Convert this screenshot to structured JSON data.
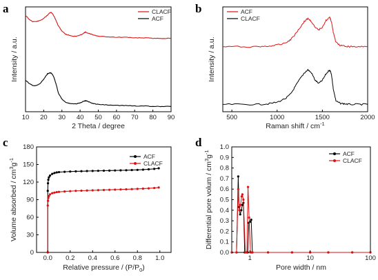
{
  "colors": {
    "acf": "#000000",
    "clacf": "#dd1111",
    "axis": "#000000"
  },
  "chart_data": [
    {
      "panel": "a",
      "type": "line",
      "title": "",
      "xlabel": "2 Theta / degree",
      "ylabel": "Intensity / a.u.",
      "xlim": [
        10,
        90
      ],
      "xticks": [
        "10",
        "20",
        "30",
        "40",
        "50",
        "60",
        "70",
        "80",
        "90"
      ],
      "legend": {
        "position": "top-right",
        "entries": [
          "CLACF",
          "ACF"
        ]
      },
      "series": [
        {
          "name": "CLACF",
          "color": "#dd1111",
          "x": [
            10,
            12,
            14,
            16,
            18,
            20,
            22,
            23,
            24,
            25,
            26,
            27,
            28,
            30,
            32,
            34,
            36,
            38,
            40,
            42,
            43,
            44,
            46,
            48,
            50,
            55,
            60,
            65,
            70,
            75,
            80,
            85,
            90
          ],
          "y": [
            0.92,
            0.88,
            0.86,
            0.86,
            0.87,
            0.89,
            0.92,
            0.94,
            0.95,
            0.93,
            0.9,
            0.86,
            0.82,
            0.77,
            0.74,
            0.73,
            0.72,
            0.72,
            0.73,
            0.75,
            0.76,
            0.75,
            0.74,
            0.73,
            0.72,
            0.715,
            0.71,
            0.71,
            0.705,
            0.705,
            0.7,
            0.7,
            0.7
          ]
        },
        {
          "name": "ACF",
          "color": "#000000",
          "x": [
            10,
            12,
            14,
            16,
            18,
            20,
            22,
            23,
            24,
            25,
            26,
            27,
            28,
            30,
            32,
            34,
            36,
            38,
            40,
            42,
            43,
            44,
            46,
            48,
            50,
            55,
            60,
            65,
            70,
            75,
            80,
            85,
            90
          ],
          "y": [
            0.3,
            0.27,
            0.25,
            0.25,
            0.27,
            0.31,
            0.36,
            0.37,
            0.37,
            0.35,
            0.31,
            0.25,
            0.18,
            0.12,
            0.09,
            0.08,
            0.075,
            0.075,
            0.085,
            0.1,
            0.105,
            0.1,
            0.085,
            0.075,
            0.07,
            0.065,
            0.06,
            0.06,
            0.055,
            0.055,
            0.05,
            0.05,
            0.05
          ]
        }
      ]
    },
    {
      "panel": "b",
      "type": "line",
      "title": "",
      "xlabel": "Raman shift / cm",
      "xlabel_sup": "-1",
      "ylabel": "Intensity / a.u.",
      "xlim": [
        400,
        2000
      ],
      "xticks": [
        "500",
        "1000",
        "1500",
        "2000"
      ],
      "legend": {
        "position": "top-left",
        "entries": [
          "ACF",
          "CLACF"
        ]
      },
      "series": [
        {
          "name": "ACF",
          "color": "#dd1111",
          "x": [
            400,
            600,
            800,
            900,
            1000,
            1100,
            1150,
            1200,
            1250,
            1300,
            1340,
            1380,
            1420,
            1460,
            1500,
            1540,
            1580,
            1600,
            1620,
            1650,
            1700,
            1750,
            1800,
            1900,
            2000
          ],
          "y": [
            0.62,
            0.62,
            0.62,
            0.625,
            0.635,
            0.66,
            0.69,
            0.74,
            0.8,
            0.86,
            0.89,
            0.86,
            0.8,
            0.78,
            0.81,
            0.87,
            0.9,
            0.86,
            0.76,
            0.66,
            0.63,
            0.625,
            0.62,
            0.62,
            0.62
          ]
        },
        {
          "name": "CLACF",
          "color": "#000000",
          "x": [
            400,
            600,
            800,
            900,
            1000,
            1100,
            1150,
            1200,
            1250,
            1300,
            1340,
            1380,
            1420,
            1460,
            1500,
            1540,
            1580,
            1600,
            1620,
            1650,
            1700,
            1750,
            1800,
            1900,
            2000
          ],
          "y": [
            0.07,
            0.07,
            0.07,
            0.075,
            0.09,
            0.13,
            0.17,
            0.24,
            0.31,
            0.37,
            0.4,
            0.37,
            0.3,
            0.27,
            0.3,
            0.36,
            0.4,
            0.36,
            0.22,
            0.1,
            0.08,
            0.075,
            0.07,
            0.07,
            0.07
          ]
        }
      ]
    },
    {
      "panel": "c",
      "type": "line",
      "title": "",
      "xlabel": "Relative pressure / (P/P",
      "xlabel_sub": "0",
      "xlabel_tail": ")",
      "ylabel": "Volume absorbed / cm",
      "ylabel_sup": "3",
      "ylabel_mid": "g",
      "ylabel_sup2": "-1",
      "xlim": [
        -0.1,
        1.1
      ],
      "ylim": [
        0,
        180
      ],
      "xticks": [
        "0.0",
        "0.2",
        "0.4",
        "0.6",
        "0.8",
        "1.0"
      ],
      "yticks": [
        "0",
        "30",
        "60",
        "90",
        "120",
        "150",
        "180"
      ],
      "legend": {
        "position": "top-right",
        "entries": [
          "ACF",
          "CLACF"
        ]
      },
      "series": [
        {
          "name": "ACF",
          "color": "#000000",
          "x": [
            0.0,
            0.0,
            0.002,
            0.005,
            0.01,
            0.02,
            0.04,
            0.06,
            0.08,
            0.1,
            0.15,
            0.2,
            0.25,
            0.3,
            0.35,
            0.4,
            0.45,
            0.5,
            0.55,
            0.6,
            0.65,
            0.7,
            0.75,
            0.8,
            0.85,
            0.9,
            0.95,
            0.99
          ],
          "y": [
            0,
            105,
            118,
            124,
            128,
            131,
            134,
            135.5,
            136.5,
            137,
            137.5,
            138,
            138.3,
            138.5,
            138.8,
            139,
            139.2,
            139.4,
            139.6,
            139.8,
            140,
            140.2,
            140.5,
            140.8,
            141.2,
            141.8,
            142.5,
            143.5
          ]
        },
        {
          "name": "CLACF",
          "color": "#dd1111",
          "x": [
            0.0,
            0.0,
            0.002,
            0.005,
            0.01,
            0.02,
            0.04,
            0.06,
            0.08,
            0.1,
            0.15,
            0.2,
            0.25,
            0.3,
            0.35,
            0.4,
            0.45,
            0.5,
            0.55,
            0.6,
            0.65,
            0.7,
            0.75,
            0.8,
            0.85,
            0.9,
            0.95,
            0.99
          ],
          "y": [
            0,
            80,
            88,
            93,
            96,
            99,
            101,
            102,
            102.8,
            103.3,
            104,
            104.5,
            105,
            105.3,
            105.6,
            105.9,
            106.2,
            106.5,
            106.8,
            107.1,
            107.4,
            107.7,
            108,
            108.4,
            108.8,
            109.3,
            109.9,
            110.8
          ]
        }
      ]
    },
    {
      "panel": "d",
      "type": "line",
      "title": "",
      "xlabel": "Pore width / nm",
      "ylabel": "Differential pore volum / cm",
      "ylabel_sup": "3",
      "ylabel_mid": "g",
      "ylabel_sup2": "-1",
      "xscale": "log",
      "xlim": [
        0.5,
        100
      ],
      "ylim": [
        0.0,
        1.0
      ],
      "xticks": [
        "1",
        "10",
        "100"
      ],
      "yticks": [
        "0.0",
        "0.1",
        "0.2",
        "0.3",
        "0.4",
        "0.5",
        "0.6",
        "0.7",
        "0.8",
        "0.9",
        "1.0"
      ],
      "legend": {
        "position": "top-right",
        "entries": [
          "ACF",
          "CLACF"
        ]
      },
      "series": [
        {
          "name": "ACF",
          "color": "#000000",
          "x": [
            0.5,
            0.6,
            0.64,
            0.66,
            0.69,
            0.72,
            0.75,
            0.78,
            0.82,
            0.88,
            0.92,
            0.96,
            1.0,
            1.05,
            1.1,
            2,
            5,
            10,
            20,
            50,
            100
          ],
          "y": [
            0,
            0,
            0.72,
            0.43,
            0.36,
            0.4,
            0.45,
            0.47,
            0.0,
            0.0,
            0.0,
            0.28,
            0.29,
            0.31,
            0.0,
            0,
            0,
            0,
            0,
            0,
            0
          ]
        },
        {
          "name": "CLACF",
          "color": "#dd1111",
          "x": [
            0.5,
            0.6,
            0.64,
            0.67,
            0.7,
            0.73,
            0.75,
            0.78,
            0.84,
            0.89,
            0.93,
            0.97,
            1.02,
            1.06,
            1.1,
            2,
            5,
            10,
            20,
            50,
            100
          ],
          "y": [
            0,
            0,
            0.6,
            0.4,
            0.45,
            0.53,
            0.55,
            0.5,
            0.0,
            0.0,
            0.62,
            0.33,
            0.0,
            0.0,
            0.0,
            0,
            0,
            0,
            0,
            0,
            0
          ]
        }
      ]
    }
  ]
}
